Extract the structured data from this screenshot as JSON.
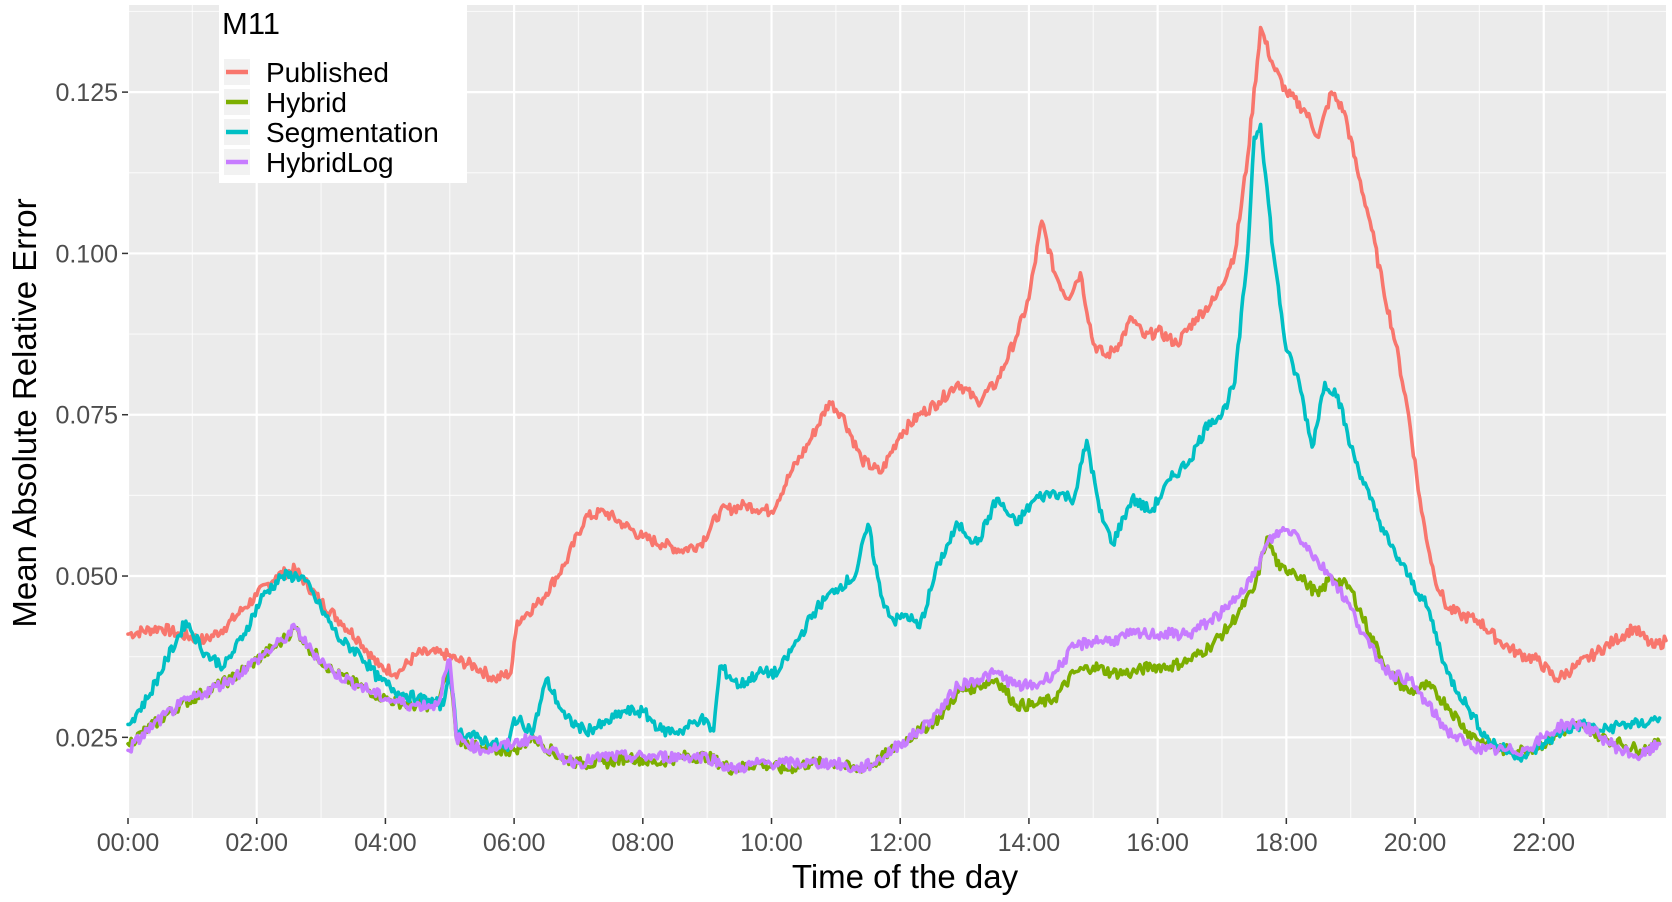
{
  "chart_data": {
    "type": "line",
    "xlabel": "Time of the day",
    "ylabel": "Mean Absolute Relative Error",
    "legend_title": "M11",
    "legend_position": "top-left",
    "grid": true,
    "background": "#EBEBEB",
    "xlim": [
      0,
      23.9
    ],
    "ylim": [
      0.0125,
      0.1385
    ],
    "x_ticks": [
      0,
      2,
      4,
      6,
      8,
      10,
      12,
      14,
      16,
      18,
      20,
      22
    ],
    "x_tick_labels": [
      "00:00",
      "02:00",
      "04:00",
      "06:00",
      "08:00",
      "10:00",
      "12:00",
      "14:00",
      "16:00",
      "18:00",
      "20:00",
      "22:00"
    ],
    "y_ticks": [
      0.025,
      0.05,
      0.075,
      0.1,
      0.125
    ],
    "y_tick_labels": [
      "0.025",
      "0.050",
      "0.075",
      "0.100",
      "0.125"
    ],
    "series": [
      {
        "name": "Published",
        "color": "#F8766D",
        "x": [
          0,
          0.5,
          0.8,
          1.2,
          1.5,
          1.8,
          2.0,
          2.3,
          2.6,
          3.0,
          3.3,
          3.6,
          3.9,
          4.2,
          4.5,
          4.9,
          5.1,
          5.4,
          5.7,
          5.95,
          6.05,
          6.4,
          6.8,
          7.1,
          7.4,
          7.7,
          8.0,
          8.3,
          8.6,
          8.9,
          9.2,
          9.6,
          10.0,
          10.3,
          10.6,
          10.9,
          11.1,
          11.4,
          11.7,
          12.0,
          12.3,
          12.6,
          12.9,
          13.2,
          13.5,
          13.8,
          14.0,
          14.2,
          14.4,
          14.6,
          14.8,
          15.0,
          15.2,
          15.4,
          15.6,
          15.8,
          16.0,
          16.3,
          16.6,
          16.9,
          17.2,
          17.4,
          17.6,
          17.8,
          18.0,
          18.3,
          18.5,
          18.7,
          18.9,
          19.1,
          19.3,
          19.5,
          19.7,
          19.9,
          20.1,
          20.3,
          20.5,
          20.7,
          21.0,
          21.3,
          21.6,
          21.9,
          22.2,
          22.5,
          22.8,
          23.1,
          23.4,
          23.7,
          23.9
        ],
        "values": [
          0.041,
          0.042,
          0.041,
          0.04,
          0.042,
          0.045,
          0.047,
          0.05,
          0.051,
          0.046,
          0.043,
          0.04,
          0.036,
          0.035,
          0.038,
          0.038,
          0.037,
          0.036,
          0.034,
          0.035,
          0.043,
          0.046,
          0.052,
          0.059,
          0.06,
          0.058,
          0.056,
          0.055,
          0.054,
          0.055,
          0.06,
          0.061,
          0.06,
          0.066,
          0.071,
          0.077,
          0.075,
          0.068,
          0.066,
          0.072,
          0.075,
          0.077,
          0.08,
          0.077,
          0.08,
          0.087,
          0.093,
          0.105,
          0.097,
          0.093,
          0.097,
          0.086,
          0.084,
          0.086,
          0.09,
          0.087,
          0.088,
          0.086,
          0.09,
          0.093,
          0.1,
          0.115,
          0.135,
          0.129,
          0.125,
          0.122,
          0.118,
          0.125,
          0.122,
          0.113,
          0.105,
          0.095,
          0.086,
          0.075,
          0.06,
          0.05,
          0.045,
          0.044,
          0.043,
          0.04,
          0.038,
          0.037,
          0.034,
          0.036,
          0.038,
          0.04,
          0.042,
          0.039,
          0.04
        ]
      },
      {
        "name": "Hybrid",
        "color": "#7CAE00",
        "x": [
          0,
          0.4,
          0.8,
          1.2,
          1.6,
          2.0,
          2.4,
          2.6,
          2.8,
          3.2,
          3.6,
          4.0,
          4.4,
          4.8,
          5.0,
          5.1,
          5.5,
          6.0,
          6.3,
          6.7,
          7.0,
          7.4,
          7.8,
          8.2,
          8.6,
          9.0,
          9.4,
          9.8,
          10.2,
          10.6,
          11.0,
          11.3,
          11.6,
          12.0,
          12.3,
          12.6,
          12.9,
          13.2,
          13.5,
          13.8,
          14.1,
          14.4,
          14.7,
          15.0,
          15.3,
          15.6,
          15.9,
          16.2,
          16.5,
          16.8,
          17.1,
          17.3,
          17.5,
          17.7,
          17.9,
          18.1,
          18.3,
          18.5,
          18.7,
          19.0,
          19.3,
          19.6,
          19.9,
          20.2,
          20.5,
          20.8,
          21.1,
          21.4,
          21.7,
          22.0,
          22.3,
          22.6,
          22.9,
          23.2,
          23.5,
          23.8
        ],
        "values": [
          0.024,
          0.027,
          0.03,
          0.032,
          0.034,
          0.037,
          0.04,
          0.042,
          0.039,
          0.035,
          0.033,
          0.031,
          0.03,
          0.03,
          0.036,
          0.025,
          0.023,
          0.023,
          0.025,
          0.022,
          0.021,
          0.021,
          0.022,
          0.021,
          0.022,
          0.022,
          0.02,
          0.021,
          0.02,
          0.021,
          0.021,
          0.02,
          0.021,
          0.024,
          0.026,
          0.028,
          0.032,
          0.033,
          0.034,
          0.03,
          0.03,
          0.031,
          0.035,
          0.036,
          0.035,
          0.035,
          0.036,
          0.036,
          0.037,
          0.039,
          0.042,
          0.045,
          0.048,
          0.056,
          0.051,
          0.051,
          0.049,
          0.047,
          0.05,
          0.048,
          0.041,
          0.035,
          0.032,
          0.033,
          0.03,
          0.026,
          0.024,
          0.023,
          0.023,
          0.024,
          0.026,
          0.027,
          0.025,
          0.024,
          0.023,
          0.024
        ]
      },
      {
        "name": "Segmentation",
        "color": "#00BFC4",
        "x": [
          0,
          0.3,
          0.6,
          0.9,
          1.2,
          1.5,
          1.8,
          2.1,
          2.4,
          2.7,
          3.0,
          3.3,
          3.6,
          3.9,
          4.2,
          4.5,
          4.9,
          5.0,
          5.1,
          5.4,
          5.7,
          5.9,
          6.0,
          6.3,
          6.5,
          6.8,
          7.1,
          7.4,
          7.7,
          8.0,
          8.3,
          8.6,
          8.9,
          9.1,
          9.2,
          9.5,
          9.8,
          10.1,
          10.4,
          10.7,
          11.0,
          11.3,
          11.5,
          11.7,
          11.9,
          12.1,
          12.3,
          12.6,
          12.9,
          13.2,
          13.5,
          13.8,
          14.1,
          14.4,
          14.7,
          14.9,
          15.1,
          15.3,
          15.6,
          15.9,
          16.2,
          16.5,
          16.8,
          17.0,
          17.2,
          17.4,
          17.5,
          17.6,
          17.8,
          18.0,
          18.2,
          18.4,
          18.6,
          18.8,
          19.0,
          19.3,
          19.6,
          19.9,
          20.2,
          20.5,
          20.8,
          21.1,
          21.4,
          21.7,
          22.0,
          22.3,
          22.6,
          22.9,
          23.2,
          23.5,
          23.8
        ],
        "values": [
          0.027,
          0.031,
          0.037,
          0.043,
          0.038,
          0.036,
          0.041,
          0.047,
          0.05,
          0.05,
          0.045,
          0.04,
          0.038,
          0.034,
          0.032,
          0.031,
          0.03,
          0.036,
          0.026,
          0.025,
          0.024,
          0.023,
          0.028,
          0.026,
          0.034,
          0.028,
          0.026,
          0.027,
          0.029,
          0.029,
          0.026,
          0.026,
          0.028,
          0.026,
          0.036,
          0.033,
          0.035,
          0.035,
          0.04,
          0.045,
          0.048,
          0.05,
          0.058,
          0.047,
          0.043,
          0.044,
          0.042,
          0.052,
          0.058,
          0.055,
          0.062,
          0.058,
          0.062,
          0.063,
          0.062,
          0.071,
          0.06,
          0.055,
          0.062,
          0.06,
          0.065,
          0.068,
          0.074,
          0.075,
          0.08,
          0.1,
          0.118,
          0.12,
          0.1,
          0.085,
          0.08,
          0.07,
          0.08,
          0.078,
          0.07,
          0.062,
          0.055,
          0.05,
          0.045,
          0.035,
          0.03,
          0.025,
          0.023,
          0.022,
          0.024,
          0.026,
          0.027,
          0.026,
          0.027,
          0.027,
          0.028
        ]
      },
      {
        "name": "HybridLog",
        "color": "#C77CFF",
        "x": [
          0,
          0.4,
          0.8,
          1.2,
          1.6,
          2.0,
          2.4,
          2.6,
          2.8,
          3.2,
          3.6,
          4.0,
          4.4,
          4.8,
          5.0,
          5.1,
          5.5,
          6.0,
          6.3,
          6.7,
          7.0,
          7.4,
          7.8,
          8.2,
          8.6,
          9.0,
          9.4,
          9.8,
          10.2,
          10.6,
          11.0,
          11.3,
          11.6,
          12.0,
          12.3,
          12.6,
          12.9,
          13.2,
          13.5,
          13.8,
          14.1,
          14.4,
          14.7,
          15.0,
          15.3,
          15.6,
          15.9,
          16.2,
          16.5,
          16.8,
          17.1,
          17.3,
          17.5,
          17.7,
          17.9,
          18.1,
          18.3,
          18.5,
          18.7,
          19.0,
          19.3,
          19.6,
          19.9,
          20.2,
          20.5,
          20.8,
          21.1,
          21.4,
          21.7,
          22.0,
          22.3,
          22.6,
          22.9,
          23.2,
          23.5,
          23.8
        ],
        "values": [
          0.023,
          0.027,
          0.03,
          0.032,
          0.034,
          0.037,
          0.04,
          0.042,
          0.039,
          0.035,
          0.033,
          0.031,
          0.03,
          0.03,
          0.037,
          0.025,
          0.023,
          0.024,
          0.025,
          0.022,
          0.021,
          0.022,
          0.022,
          0.022,
          0.022,
          0.022,
          0.02,
          0.021,
          0.021,
          0.021,
          0.021,
          0.02,
          0.021,
          0.024,
          0.026,
          0.029,
          0.033,
          0.034,
          0.035,
          0.033,
          0.033,
          0.035,
          0.039,
          0.04,
          0.04,
          0.041,
          0.041,
          0.041,
          0.041,
          0.043,
          0.045,
          0.048,
          0.05,
          0.055,
          0.057,
          0.057,
          0.055,
          0.052,
          0.05,
          0.045,
          0.039,
          0.035,
          0.034,
          0.03,
          0.026,
          0.024,
          0.023,
          0.023,
          0.023,
          0.025,
          0.027,
          0.027,
          0.025,
          0.023,
          0.022,
          0.024
        ]
      }
    ]
  }
}
